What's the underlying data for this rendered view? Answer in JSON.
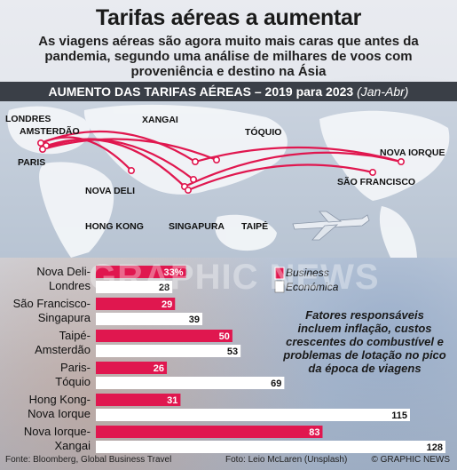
{
  "header": {
    "title": "Tarifas aéreas a aumentar",
    "subtitle": "As viagens aéreas são agora muito mais caras que antes da pandemia, segundo uma análise de milhares de voos com proveniência e destino na Ásia",
    "band_main": "AUMENTO DAS TARIFAS AÉREAS – 2019 para 2023 ",
    "band_period": "(Jan-Abr)"
  },
  "map": {
    "cities": [
      {
        "id": "londres",
        "label": "LONDRES"
      },
      {
        "id": "amsterdao",
        "label": "AMSTERDÃO"
      },
      {
        "id": "paris",
        "label": "PARIS"
      },
      {
        "id": "nova-deli",
        "label": "NOVA DELI"
      },
      {
        "id": "xangai",
        "label": "XANGAI"
      },
      {
        "id": "toquio",
        "label": "TÓQUIO"
      },
      {
        "id": "nova-iorque",
        "label": "NOVA IORQUE"
      },
      {
        "id": "sao-francisco",
        "label": "SÃO FRANCISCO"
      },
      {
        "id": "hong-kong",
        "label": "HONG KONG"
      },
      {
        "id": "singapura",
        "label": "SINGAPURA"
      },
      {
        "id": "taipe",
        "label": "TAIPÉ"
      }
    ]
  },
  "factors_note": "Fatores responsáveis incluem inflação, custos crescentes do combustível e problemas de lotação no pico da época de viagens",
  "watermark": "GRAPHIC NEWS",
  "footer": {
    "source": "Fonte: Bloomberg, Global Business Travel",
    "photo": "Foto: Leio McLaren (Unsplash)",
    "credit": "© GRAPHIC NEWS"
  },
  "colors": {
    "business": "#e0174f",
    "economy": "#ffffff",
    "band": "#3a3f47",
    "route": "#e0174f"
  },
  "chart_data": {
    "type": "bar",
    "orientation": "horizontal",
    "categories": [
      "Nova Deli-Londres",
      "São Francisco-Singapura",
      "Taipé-Amsterdão",
      "Paris-Tóquio",
      "Hong Kong-Nova Iorque",
      "Nova Iorque-Xangai"
    ],
    "category_lines": [
      [
        "Nova Deli-",
        "Londres"
      ],
      [
        "São Francisco-",
        "Singapura"
      ],
      [
        "Taipé-",
        "Amsterdão"
      ],
      [
        "Paris-",
        "Tóquio"
      ],
      [
        "Hong Kong-",
        "Nova Iorque"
      ],
      [
        "Nova Iorque-",
        "Xangai"
      ]
    ],
    "series": [
      {
        "name": "Business",
        "values": [
          33,
          29,
          50,
          26,
          31,
          83
        ],
        "labels": [
          "33%",
          "29",
          "50",
          "26",
          "31",
          "83"
        ]
      },
      {
        "name": "Económica",
        "values": [
          28,
          39,
          53,
          69,
          115,
          128
        ],
        "labels": [
          "28",
          "39",
          "53",
          "69",
          "115",
          "128"
        ]
      }
    ],
    "xlim": [
      0,
      128
    ],
    "legend": "top-right"
  }
}
